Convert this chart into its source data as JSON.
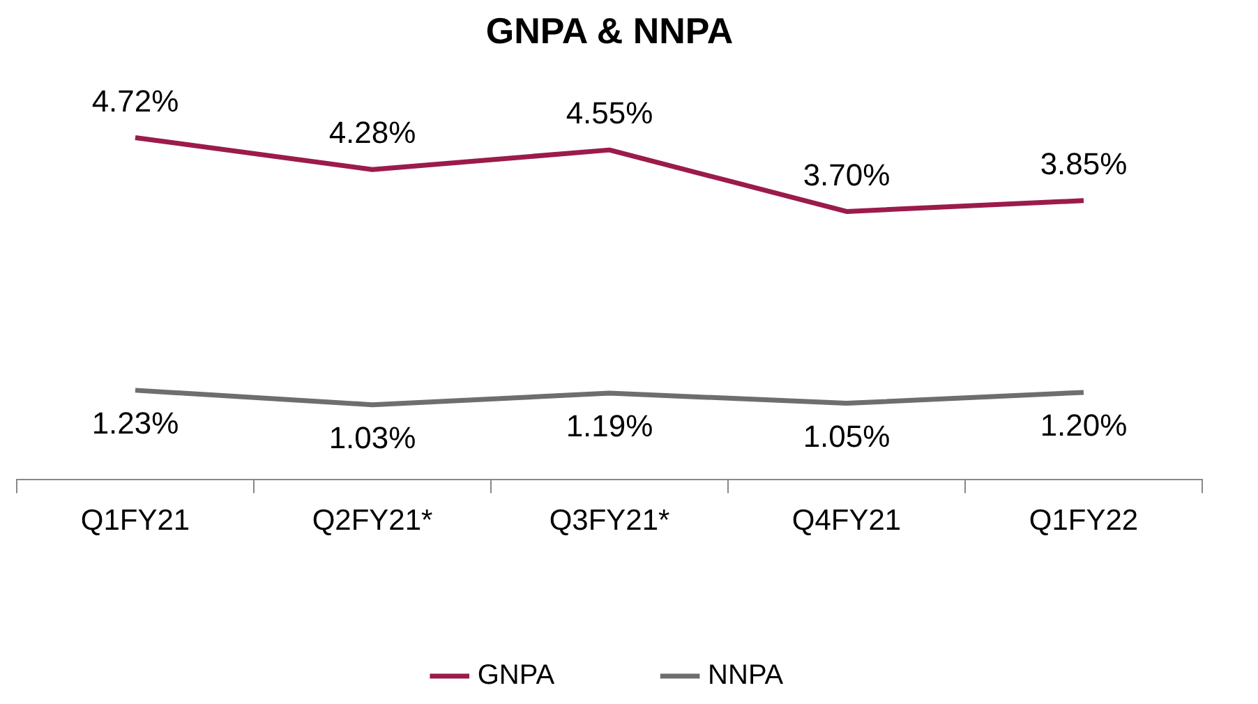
{
  "chart_data": {
    "type": "line",
    "title": "GNPA & NNPA",
    "categories": [
      "Q1FY21",
      "Q2FY21*",
      "Q3FY21*",
      "Q4FY21",
      "Q1FY22"
    ],
    "series": [
      {
        "name": "GNPA",
        "color": "#9b1b4b",
        "values": [
          4.72,
          4.28,
          4.55,
          3.7,
          3.85
        ],
        "value_labels": [
          "4.72%",
          "4.28%",
          "4.55%",
          "3.70%",
          "3.85%"
        ]
      },
      {
        "name": "NNPA",
        "color": "#6e6e6e",
        "values": [
          1.23,
          1.03,
          1.19,
          1.05,
          1.2
        ],
        "value_labels": [
          "1.23%",
          "1.03%",
          "1.19%",
          "1.05%",
          "1.20%"
        ]
      }
    ],
    "grid": false,
    "legend": "bottom",
    "line_style": "solid"
  }
}
